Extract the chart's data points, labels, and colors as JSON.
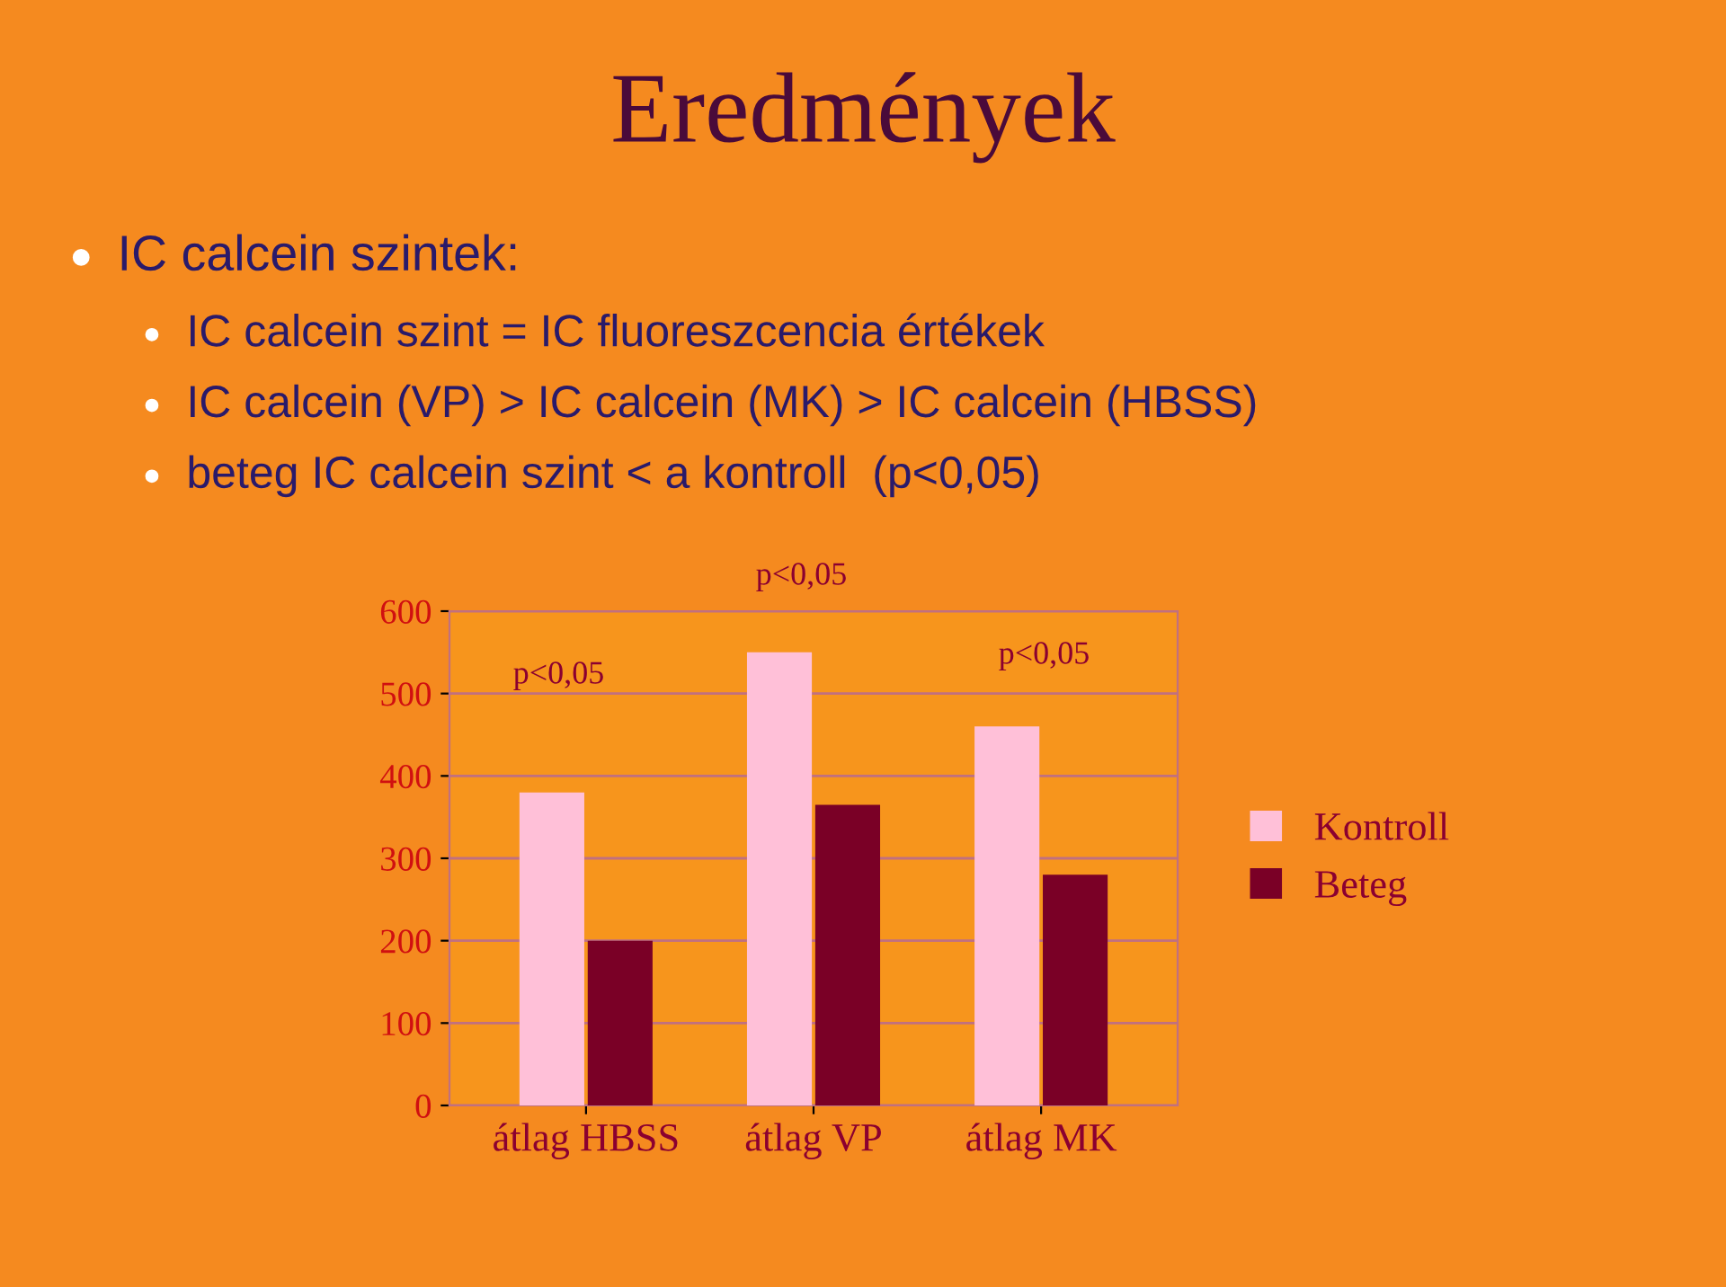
{
  "chart_data": {
    "type": "bar",
    "title": "Eredmények",
    "annotations": [
      "IC calcein szintek:",
      "IC calcein szint = IC fluoreszcencia értékek",
      "IC calcein (VP) > IC calcein (MK) > IC calcein (HBSS)",
      "beteg IC calcein szint < a kontroll  (p<0,05)",
      "p<0,05",
      "p<0,05",
      "p<0,05"
    ],
    "categories": [
      "átlag HBSS",
      "átlag VP",
      "átlag MK"
    ],
    "series": [
      {
        "name": "Kontroll",
        "color": "#ffc0d8",
        "values": [
          380,
          550,
          460
        ]
      },
      {
        "name": "Beteg",
        "color": "#7a0026",
        "values": [
          200,
          365,
          280
        ]
      }
    ],
    "ylim": [
      0,
      600
    ],
    "yticks": [
      0,
      100,
      200,
      300,
      400,
      500,
      600
    ],
    "grid": "y",
    "legend": "right"
  }
}
